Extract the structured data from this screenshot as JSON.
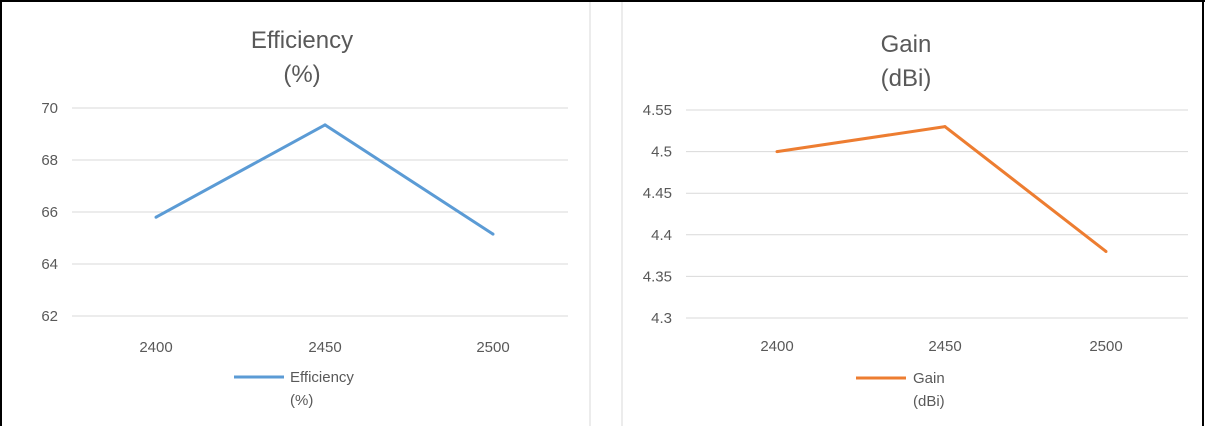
{
  "chart_data": [
    {
      "type": "line",
      "title": [
        "Efficiency",
        "(%)"
      ],
      "categories": [
        "2400",
        "2450",
        "2500"
      ],
      "series": [
        {
          "name": [
            "Efficiency",
            "(%)"
          ],
          "values": [
            65.8,
            69.35,
            65.15
          ],
          "color": "#5b9bd5"
        }
      ],
      "yticks": [
        "62",
        "64",
        "66",
        "68",
        "70"
      ],
      "ylim": [
        62,
        70
      ],
      "grid": true,
      "legend": "bottom"
    },
    {
      "type": "line",
      "title": [
        "Gain",
        "(dBi)"
      ],
      "categories": [
        "2400",
        "2450",
        "2500"
      ],
      "series": [
        {
          "name": [
            "Gain",
            "(dBi)"
          ],
          "values": [
            4.5,
            4.53,
            4.38
          ],
          "color": "#ed7d31"
        }
      ],
      "yticks": [
        "4.3",
        "4.35",
        "4.4",
        "4.45",
        "4.5",
        "4.55"
      ],
      "ylim": [
        4.3,
        4.55
      ],
      "grid": true,
      "legend": "bottom"
    }
  ]
}
